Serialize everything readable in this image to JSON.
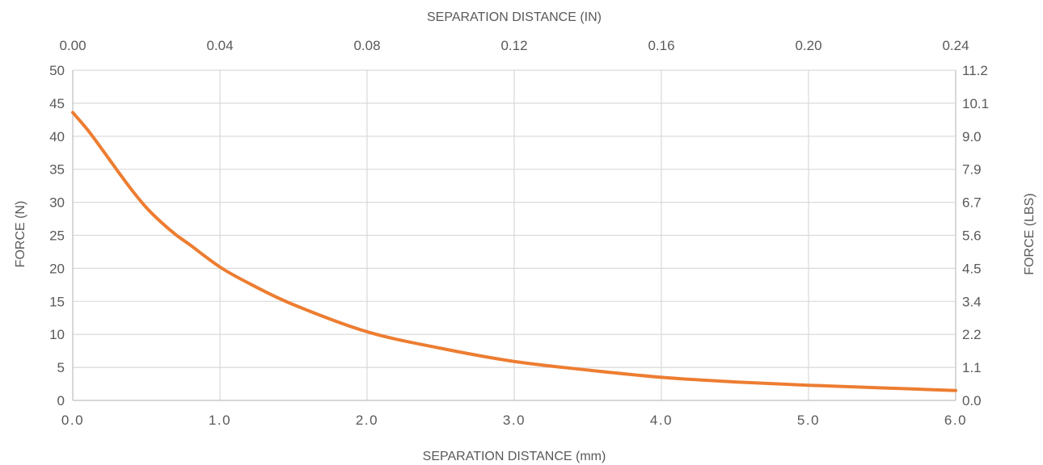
{
  "chart_data": {
    "type": "line",
    "x_top": {
      "label": "SEPARATION DISTANCE (IN)",
      "ticks": [
        "0.00",
        "0.04",
        "0.08",
        "0.12",
        "0.16",
        "0.20",
        "0.24"
      ],
      "range": [
        0,
        0.24
      ]
    },
    "x_bottom": {
      "label": "SEPARATION DISTANCE (mm)",
      "ticks": [
        "0.0",
        "1.0",
        "2.0",
        "3.0",
        "4.0",
        "5.0",
        "6.0"
      ],
      "range": [
        0,
        6
      ]
    },
    "y_left": {
      "label": "FORCE (N)",
      "ticks": [
        "0",
        "5",
        "10",
        "15",
        "20",
        "25",
        "30",
        "35",
        "40",
        "45",
        "50"
      ],
      "range": [
        0,
        50
      ]
    },
    "y_right": {
      "label": "FORCE (LBS)",
      "ticks": [
        "0.0",
        "1.1",
        "2.2",
        "3.4",
        "4.5",
        "5.6",
        "6.7",
        "7.9",
        "9.0",
        "10.1",
        "11.2"
      ],
      "range": [
        0,
        11.2
      ]
    },
    "grid": true,
    "series": [
      {
        "color": "#ED7D31",
        "x": [
          0,
          0.1,
          0.2,
          0.3,
          0.4,
          0.5,
          0.6,
          0.7,
          0.8,
          1.0,
          1.2,
          1.5,
          2.0,
          2.5,
          3.0,
          3.5,
          4.0,
          4.5,
          5.0,
          5.5,
          6.0
        ],
        "y": [
          43.6,
          41.0,
          38.0,
          34.9,
          31.9,
          29.2,
          27.0,
          25.1,
          23.5,
          20.2,
          17.7,
          14.5,
          10.4,
          7.9,
          5.9,
          4.6,
          3.5,
          2.8,
          2.3,
          1.9,
          1.5
        ]
      }
    ]
  }
}
